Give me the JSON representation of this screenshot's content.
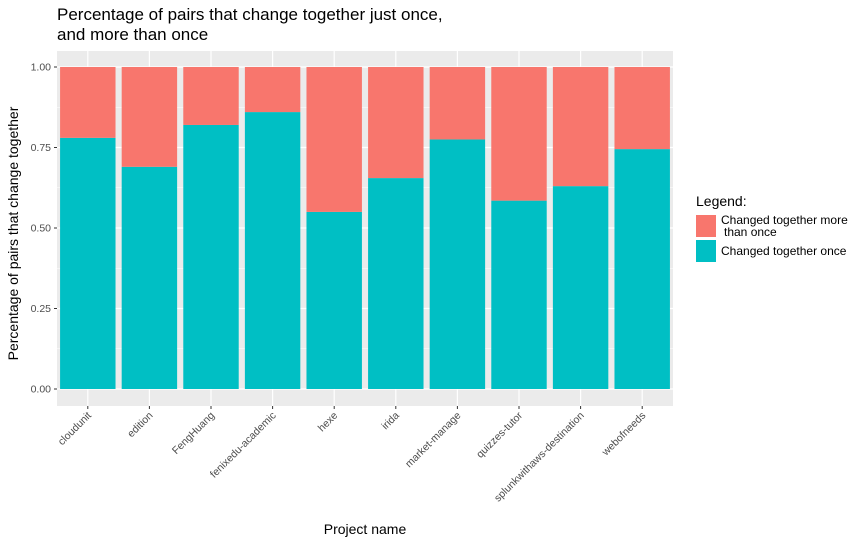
{
  "chart_data": {
    "type": "bar",
    "stacked": true,
    "title": "Percentage of pairs that change together just once,\nand more than once",
    "xlabel": "Project name",
    "ylabel": "Percentage of pairs that change together",
    "ylim": [
      0,
      1
    ],
    "y_ticks": [
      "0.00",
      "0.25",
      "0.50",
      "0.75",
      "1.00"
    ],
    "grid": true,
    "legend_placement": "right",
    "legend_title": "Legend:",
    "categories": [
      "cloudunit",
      "edition",
      "FengHuang",
      "fenixedu-academic",
      "hexe",
      "irida",
      "market-manage",
      "quizzes-tutor",
      "splunkwithaws-destination",
      "webofneeds"
    ],
    "series": [
      {
        "name": "Changed together once",
        "color": "#00BFC4",
        "values": [
          0.78,
          0.69,
          0.82,
          0.86,
          0.55,
          0.655,
          0.775,
          0.585,
          0.63,
          0.745
        ]
      },
      {
        "name": "Changed together more\nthan once",
        "color": "#F8766D",
        "values": [
          0.22,
          0.31,
          0.18,
          0.14,
          0.45,
          0.345,
          0.225,
          0.415,
          0.37,
          0.255
        ]
      }
    ],
    "legend_order": [
      1,
      0
    ],
    "colors": {
      "panel_bg": "#EBEBEB",
      "grid": "#FFFFFF",
      "tick_text": "#4D4D4D"
    }
  }
}
